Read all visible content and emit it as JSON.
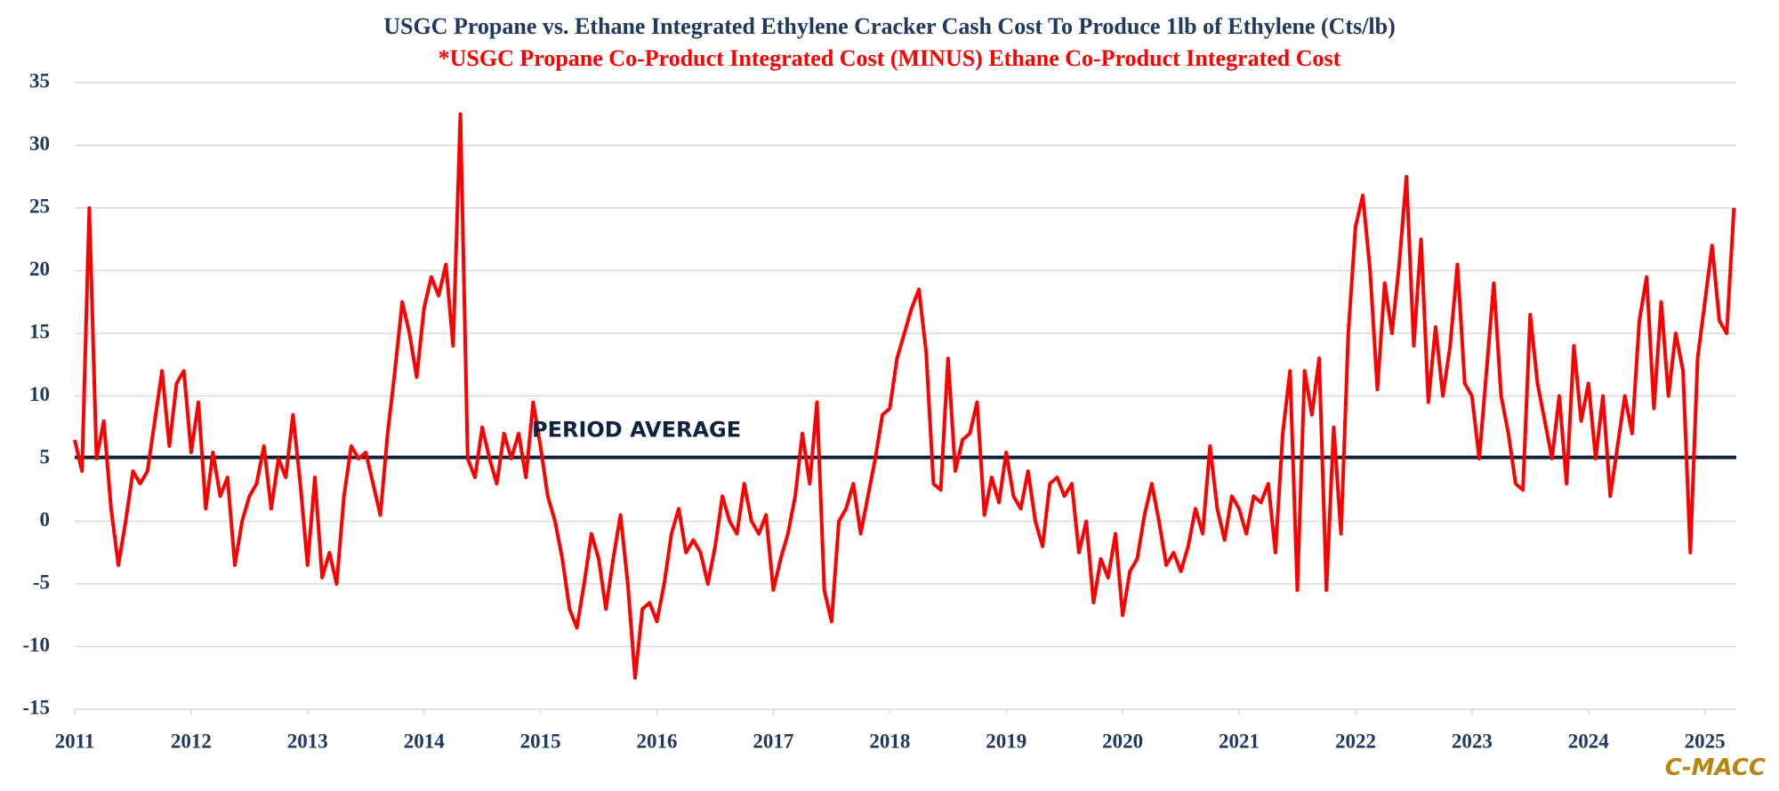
{
  "chart_data": {
    "type": "line",
    "title": "USGC Propane vs. Ethane Integrated Ethylene Cracker Cash Cost To Produce 1lb of Ethylene (Cts/lb)",
    "subtitle": "*USGC Propane Co-Product Integrated Cost (MINUS) Ethane Co-Product Integrated Cost",
    "title_color": "#1f3864",
    "subtitle_color": "#ff0000",
    "color": "#ff0000",
    "reference_line": {
      "value": 5.1,
      "label": "PERIOD AVERAGE",
      "color": "#0d2340"
    },
    "watermark": "C-MACC",
    "grid": true,
    "xlim": [
      2011,
      2025.27
    ],
    "xticks": [
      2011,
      2012,
      2013,
      2014,
      2015,
      2016,
      2017,
      2018,
      2019,
      2020,
      2021,
      2022,
      2023,
      2024,
      2025
    ],
    "ylim": [
      -15,
      35
    ],
    "yticks": [
      -15,
      -10,
      -5,
      0,
      5,
      10,
      15,
      20,
      25,
      30,
      35
    ],
    "x": [
      2011,
      2011.0625,
      2011.125,
      2011.1875,
      2011.25,
      2011.3125,
      2011.375,
      2011.4375,
      2011.5,
      2011.5625,
      2011.625,
      2011.6875,
      2011.75,
      2011.8125,
      2011.875,
      2011.9375,
      2012,
      2012.0625,
      2012.125,
      2012.1875,
      2012.25,
      2012.3125,
      2012.375,
      2012.4375,
      2012.5,
      2012.5625,
      2012.625,
      2012.6875,
      2012.75,
      2012.8125,
      2012.875,
      2012.9375,
      2013,
      2013.0625,
      2013.125,
      2013.1875,
      2013.25,
      2013.3125,
      2013.375,
      2013.4375,
      2013.5,
      2013.5625,
      2013.625,
      2013.6875,
      2013.75,
      2013.8125,
      2013.875,
      2013.9375,
      2014,
      2014.0625,
      2014.125,
      2014.1875,
      2014.25,
      2014.3125,
      2014.375,
      2014.4375,
      2014.5,
      2014.5625,
      2014.625,
      2014.6875,
      2014.75,
      2014.8125,
      2014.875,
      2014.9375,
      2015,
      2015.0625,
      2015.125,
      2015.1875,
      2015.25,
      2015.3125,
      2015.375,
      2015.4375,
      2015.5,
      2015.5625,
      2015.625,
      2015.6875,
      2015.75,
      2015.8125,
      2015.875,
      2015.9375,
      2016,
      2016.0625,
      2016.125,
      2016.1875,
      2016.25,
      2016.3125,
      2016.375,
      2016.4375,
      2016.5,
      2016.5625,
      2016.625,
      2016.6875,
      2016.75,
      2016.8125,
      2016.875,
      2016.9375,
      2017,
      2017.0625,
      2017.125,
      2017.1875,
      2017.25,
      2017.3125,
      2017.375,
      2017.4375,
      2017.5,
      2017.5625,
      2017.625,
      2017.6875,
      2017.75,
      2017.8125,
      2017.875,
      2017.9375,
      2018,
      2018.0625,
      2018.125,
      2018.1875,
      2018.25,
      2018.3125,
      2018.375,
      2018.4375,
      2018.5,
      2018.5625,
      2018.625,
      2018.6875,
      2018.75,
      2018.8125,
      2018.875,
      2018.9375,
      2019,
      2019.0625,
      2019.125,
      2019.1875,
      2019.25,
      2019.3125,
      2019.375,
      2019.4375,
      2019.5,
      2019.5625,
      2019.625,
      2019.6875,
      2019.75,
      2019.8125,
      2019.875,
      2019.9375,
      2020,
      2020.0625,
      2020.125,
      2020.1875,
      2020.25,
      2020.3125,
      2020.375,
      2020.4375,
      2020.5,
      2020.5625,
      2020.625,
      2020.6875,
      2020.75,
      2020.8125,
      2020.875,
      2020.9375,
      2021,
      2021.0625,
      2021.125,
      2021.1875,
      2021.25,
      2021.3125,
      2021.375,
      2021.4375,
      2021.5,
      2021.5625,
      2021.625,
      2021.6875,
      2021.75,
      2021.8125,
      2021.875,
      2021.9375,
      2022,
      2022.0625,
      2022.125,
      2022.1875,
      2022.25,
      2022.3125,
      2022.375,
      2022.4375,
      2022.5,
      2022.5625,
      2022.625,
      2022.6875,
      2022.75,
      2022.8125,
      2022.875,
      2022.9375,
      2023,
      2023.0625,
      2023.125,
      2023.1875,
      2023.25,
      2023.3125,
      2023.375,
      2023.4375,
      2023.5,
      2023.5625,
      2023.625,
      2023.6875,
      2023.75,
      2023.8125,
      2023.875,
      2023.9375,
      2024,
      2024.0625,
      2024.125,
      2024.1875,
      2024.25,
      2024.3125,
      2024.375,
      2024.4375,
      2024.5,
      2024.5625,
      2024.625,
      2024.6875,
      2024.75,
      2024.8125,
      2024.875,
      2024.9375,
      2025,
      2025.0625,
      2025.125,
      2025.1875,
      2025.25
    ],
    "values": [
      6.5,
      4,
      25,
      5,
      8,
      1,
      -3.5,
      0,
      4,
      3,
      4,
      8,
      12,
      6,
      11,
      12,
      5.5,
      9.5,
      1,
      5.5,
      2,
      3.5,
      -3.5,
      0,
      2,
      3,
      6,
      1,
      5,
      3.5,
      8.5,
      3,
      -3.5,
      3.5,
      -4.5,
      -2.5,
      -5,
      2,
      6,
      5,
      5.5,
      3,
      0.5,
      7,
      12,
      17.5,
      15,
      11.5,
      17,
      19.5,
      18,
      20.5,
      14,
      32.5,
      5,
      3.5,
      7.5,
      5,
      3,
      7,
      5,
      7,
      3.5,
      9.5,
      6,
      2,
      0,
      -3,
      -7,
      -8.5,
      -5,
      -1,
      -3,
      -7,
      -3,
      0.5,
      -5,
      -12.5,
      -7,
      -6.5,
      -8,
      -5,
      -1,
      1,
      -2.5,
      -1.5,
      -2.5,
      -5,
      -2,
      2,
      0,
      -1,
      3,
      0,
      -1,
      0.5,
      -5.5,
      -3,
      -1,
      2,
      7,
      3,
      9.5,
      -5.5,
      -8,
      0,
      1,
      3,
      -1,
      2,
      5,
      8.5,
      9,
      13,
      15,
      17,
      18.5,
      13.5,
      3,
      2.5,
      13,
      4,
      6.5,
      7,
      9.5,
      0.5,
      3.5,
      1.5,
      5.5,
      2,
      1,
      4,
      0,
      -2,
      3,
      3.5,
      2,
      3,
      -2.5,
      0,
      -6.5,
      -3,
      -4.5,
      -1,
      -7.5,
      -4,
      -3,
      0.5,
      3,
      0,
      -3.5,
      -2.5,
      -4,
      -2,
      1,
      -1,
      6,
      1,
      -1.5,
      2,
      1,
      -1,
      2,
      1.5,
      3,
      -2.5,
      7,
      12,
      -5.5,
      12,
      8.5,
      13,
      -5.5,
      7.5,
      -1,
      15,
      23.5,
      26,
      20,
      10.5,
      19,
      15,
      20.5,
      27.5,
      14,
      22.5,
      9.5,
      15.5,
      10,
      14,
      20.5,
      11,
      10,
      5,
      12,
      19,
      10,
      7,
      3,
      2.5,
      16.5,
      11,
      8,
      5,
      10,
      3,
      14,
      8,
      11,
      5,
      10,
      2,
      6,
      10,
      7,
      16,
      19.5,
      9,
      17.5,
      10,
      15,
      12,
      -2.5,
      13,
      17.5,
      22,
      16,
      15,
      25
    ]
  }
}
